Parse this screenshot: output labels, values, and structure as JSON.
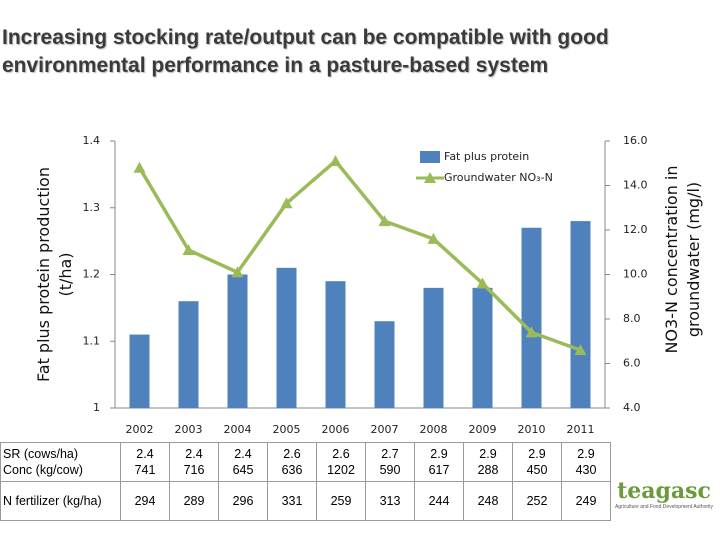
{
  "chart_data": {
    "type": "bar",
    "title": "Increasing stocking rate/output can be  compatible with good environmental performance in a pasture-based system",
    "ylabel": [
      "Fat plus protein production",
      "(t/ha)"
    ],
    "y2label": [
      "NO3-N concentration in",
      "groundwater (mg/l)"
    ],
    "categories": [
      "2002",
      "2003",
      "2004",
      "2005",
      "2006",
      "2007",
      "2008",
      "2009",
      "2010",
      "2011"
    ],
    "series": [
      {
        "name": "Fat plus protein",
        "type": "bar",
        "color": "#4f81bd",
        "values": [
          1.11,
          1.16,
          1.2,
          1.21,
          1.19,
          1.13,
          1.18,
          1.18,
          1.27,
          1.28
        ]
      },
      {
        "name": "Groundwater NO₃-N",
        "type": "line",
        "axis": "y2",
        "color": "#9bbb59",
        "values": [
          14.8,
          11.1,
          10.1,
          13.2,
          15.1,
          12.4,
          11.6,
          9.6,
          7.4,
          6.6
        ]
      }
    ],
    "ylim": [
      1,
      1.4
    ],
    "yticks": [
      1,
      1.1,
      1.2,
      1.3,
      1.4
    ],
    "y2lim": [
      4,
      16
    ],
    "y2ticks": [
      {
        "value": 4,
        "label": "4.0"
      },
      {
        "value": 6,
        "label": "6.0"
      },
      {
        "value": 8,
        "label": "8.0"
      },
      {
        "value": 10,
        "label": "10.0"
      },
      {
        "value": 12,
        "label": "12.0"
      },
      {
        "value": 14,
        "label": "14.0"
      },
      {
        "value": 16,
        "label": "16.0"
      }
    ],
    "legend": "upper right"
  },
  "table": {
    "row_labels": [
      "SR (cows/ha)",
      "Conc (kg/cow)",
      "N  fertilizer (kg/ha)"
    ],
    "rows": [
      [
        "2.4",
        "2.4",
        "2.4",
        "2.6",
        "2.6",
        "2.7",
        "2.9",
        "2.9",
        "2.9",
        "2.9"
      ],
      [
        "741",
        "716",
        "645",
        "636",
        "1202",
        "590",
        "617",
        "288",
        "450",
        "430"
      ],
      [
        "294",
        "289",
        "296",
        "331",
        "259",
        "313",
        "244",
        "248",
        "252",
        "249"
      ]
    ]
  },
  "logo": {
    "brand": "teagasc",
    "subtitle": "Agriculture and Food Development Authority"
  }
}
